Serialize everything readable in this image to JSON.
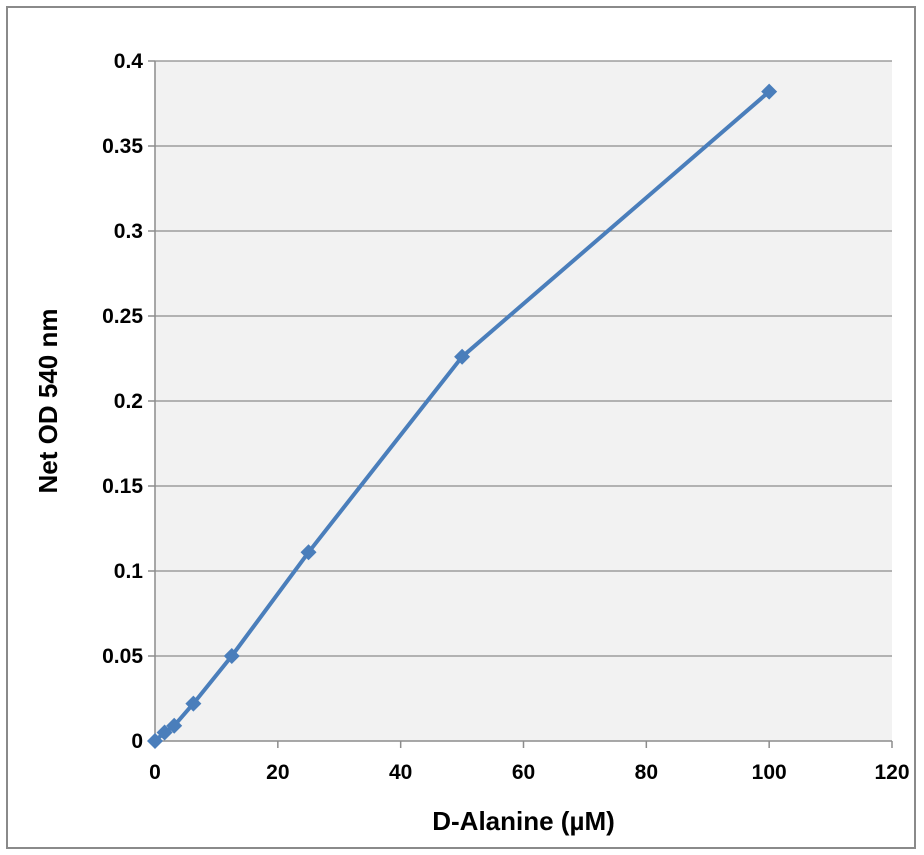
{
  "chart_data": {
    "type": "line",
    "title": "",
    "xlabel": "D-Alanine (µM)",
    "ylabel": "Net OD 540 nm",
    "xlim": [
      0,
      120
    ],
    "ylim": [
      0,
      0.4
    ],
    "x_ticks": [
      0,
      20,
      40,
      60,
      80,
      100,
      120
    ],
    "y_ticks": [
      0,
      0.05,
      0.1,
      0.15,
      0.2,
      0.25,
      0.3,
      0.35,
      0.4
    ],
    "x_tick_labels": [
      "0",
      "20",
      "40",
      "60",
      "80",
      "100",
      "120"
    ],
    "y_tick_labels": [
      "0",
      "0.05",
      "0.1",
      "0.15",
      "0.2",
      "0.25",
      "0.3",
      "0.35",
      "0.4"
    ],
    "grid": "horizontal",
    "legend": "none",
    "colors": {
      "series": "#4a7ebb",
      "plot_background": "#f2f2f2",
      "gridline": "#8c8c8c",
      "axis": "#8c8c8c"
    },
    "series": [
      {
        "marker": "diamond",
        "x": [
          0,
          1.5625,
          3.125,
          6.25,
          12.5,
          25,
          50,
          100
        ],
        "y": [
          0.0,
          0.005,
          0.009,
          0.022,
          0.05,
          0.111,
          0.226,
          0.382
        ]
      }
    ]
  }
}
